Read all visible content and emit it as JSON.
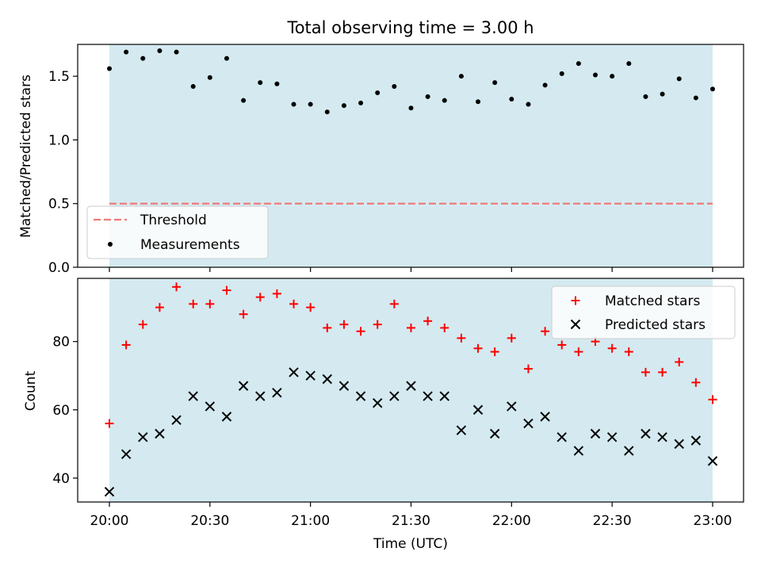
{
  "chart_data": [
    {
      "type": "scatter",
      "title": "Total observing time = 3.00 h",
      "xlabel": "",
      "ylabel": "Matched/Predicted stars",
      "ylim": [
        0,
        1.75
      ],
      "yticks": [
        "0.0",
        "0.5",
        "1.0",
        "1.5"
      ],
      "grid": false,
      "legend_placement": "lower-left",
      "series": [
        {
          "name": "Measurements",
          "color": "#000000",
          "marker": "dot",
          "x": [
            "20:00",
            "20:05",
            "20:10",
            "20:15",
            "20:20",
            "20:25",
            "20:30",
            "20:35",
            "20:40",
            "20:45",
            "20:50",
            "20:55",
            "21:00",
            "21:05",
            "21:10",
            "21:15",
            "21:20",
            "21:25",
            "21:30",
            "21:35",
            "21:40",
            "21:45",
            "21:50",
            "21:55",
            "22:00",
            "22:05",
            "22:10",
            "22:15",
            "22:20",
            "22:25",
            "22:30",
            "22:35",
            "22:40",
            "22:45",
            "22:50",
            "22:55",
            "23:00"
          ],
          "values": [
            1.56,
            1.69,
            1.64,
            1.7,
            1.69,
            1.42,
            1.49,
            1.64,
            1.31,
            1.45,
            1.44,
            1.28,
            1.28,
            1.22,
            1.27,
            1.29,
            1.37,
            1.42,
            1.25,
            1.34,
            1.31,
            1.5,
            1.3,
            1.45,
            1.32,
            1.28,
            1.43,
            1.52,
            1.6,
            1.51,
            1.5,
            1.6,
            1.34,
            1.36,
            1.48,
            1.33,
            1.4
          ]
        },
        {
          "name": "Threshold",
          "color": "#f07a7a",
          "style": "dashed",
          "x": [
            "20:00",
            "23:00"
          ],
          "values": [
            0.5,
            0.5
          ]
        }
      ],
      "shaded_span": [
        "20:00",
        "23:00"
      ],
      "shade_color": "#d4eaf0"
    },
    {
      "type": "scatter",
      "title": "",
      "xlabel": "Time (UTC)",
      "ylabel": "Count",
      "ylim": [
        33,
        98.5
      ],
      "yticks": [
        "40",
        "60",
        "80"
      ],
      "xticks": [
        "20:00",
        "20:30",
        "21:00",
        "21:30",
        "22:00",
        "22:30",
        "23:00"
      ],
      "grid": false,
      "legend_placement": "top-right",
      "series": [
        {
          "name": "Matched stars",
          "color": "#ff0000",
          "marker": "plus",
          "x": [
            "20:00",
            "20:05",
            "20:10",
            "20:15",
            "20:20",
            "20:25",
            "20:30",
            "20:35",
            "20:40",
            "20:45",
            "20:50",
            "20:55",
            "21:00",
            "21:05",
            "21:10",
            "21:15",
            "21:20",
            "21:25",
            "21:30",
            "21:35",
            "21:40",
            "21:45",
            "21:50",
            "21:55",
            "22:00",
            "22:05",
            "22:10",
            "22:15",
            "22:20",
            "22:25",
            "22:30",
            "22:35",
            "22:40",
            "22:45",
            "22:50",
            "22:55",
            "23:00"
          ],
          "values": [
            56,
            79,
            85,
            90,
            96,
            91,
            91,
            95,
            88,
            93,
            94,
            91,
            90,
            84,
            85,
            83,
            85,
            91,
            84,
            86,
            84,
            81,
            78,
            77,
            81,
            72,
            83,
            79,
            77,
            80,
            78,
            77,
            71,
            71,
            74,
            68,
            63
          ]
        },
        {
          "name": "Predicted stars",
          "color": "#000000",
          "marker": "x",
          "x": [
            "20:00",
            "20:05",
            "20:10",
            "20:15",
            "20:20",
            "20:25",
            "20:30",
            "20:35",
            "20:40",
            "20:45",
            "20:50",
            "20:55",
            "21:00",
            "21:05",
            "21:10",
            "21:15",
            "21:20",
            "21:25",
            "21:30",
            "21:35",
            "21:40",
            "21:45",
            "21:50",
            "21:55",
            "22:00",
            "22:05",
            "22:10",
            "22:15",
            "22:20",
            "22:25",
            "22:30",
            "22:35",
            "22:40",
            "22:45",
            "22:50",
            "22:55",
            "23:00"
          ],
          "values": [
            36,
            47,
            52,
            53,
            57,
            64,
            61,
            58,
            67,
            64,
            65,
            71,
            70,
            69,
            67,
            64,
            62,
            64,
            67,
            64,
            64,
            54,
            60,
            53,
            61,
            56,
            58,
            52,
            48,
            53,
            52,
            48,
            53,
            52,
            50,
            51,
            45
          ]
        }
      ],
      "shaded_span": [
        "20:00",
        "23:00"
      ],
      "shade_color": "#d4eaf0"
    }
  ]
}
